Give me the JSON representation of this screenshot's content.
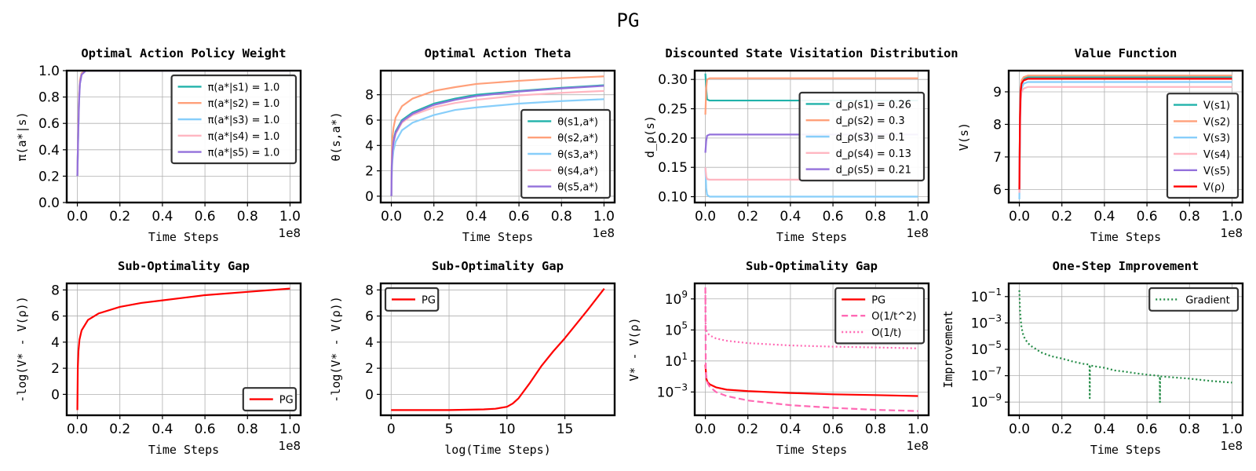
{
  "figure": {
    "title": "PG"
  },
  "chart_data": [
    {
      "type": "line",
      "title": "Optimal Action Policy Weight",
      "xlabel": "Time Steps",
      "ylabel": "π(a*|s)",
      "x_scale_note": "1e8",
      "xlim": [
        -0.05,
        1.05
      ],
      "ylim": [
        0.0,
        1.0
      ],
      "xticks": [
        0.0,
        0.2,
        0.4,
        0.6,
        0.8,
        1.0
      ],
      "xtick_labels": [
        "0.0",
        "0.2",
        "0.4",
        "0.6",
        "0.8",
        "1.0"
      ],
      "yticks": [
        0.0,
        0.2,
        0.4,
        0.6,
        0.8,
        1.0
      ],
      "ytick_labels": [
        "0.0",
        "0.2",
        "0.4",
        "0.6",
        "0.8",
        "1.0"
      ],
      "grid": true,
      "legend_position": "top-right",
      "series": [
        {
          "name": "π(a*|s1) = 1.0",
          "color": "#20b2aa",
          "x": [
            0,
            0.004,
            0.008,
            0.012,
            0.02,
            0.04,
            1.0
          ],
          "y": [
            0.2,
            0.55,
            0.8,
            0.92,
            0.98,
            1.0,
            1.0
          ]
        },
        {
          "name": "π(a*|s2) = 1.0",
          "color": "#ffa07a",
          "x": [
            0,
            0.004,
            0.008,
            0.012,
            0.02,
            0.04,
            1.0
          ],
          "y": [
            0.2,
            0.57,
            0.82,
            0.93,
            0.98,
            1.0,
            1.0
          ]
        },
        {
          "name": "π(a*|s3) = 1.0",
          "color": "#87cefa",
          "x": [
            0,
            0.004,
            0.008,
            0.012,
            0.02,
            0.04,
            1.0
          ],
          "y": [
            0.2,
            0.5,
            0.76,
            0.9,
            0.97,
            1.0,
            1.0
          ]
        },
        {
          "name": "π(a*|s4) = 1.0",
          "color": "#ffb6c1",
          "x": [
            0,
            0.004,
            0.008,
            0.012,
            0.02,
            0.04,
            1.0
          ],
          "y": [
            0.2,
            0.53,
            0.78,
            0.91,
            0.97,
            1.0,
            1.0
          ]
        },
        {
          "name": "π(a*|s5) = 1.0",
          "color": "#9370db",
          "x": [
            0,
            0.004,
            0.008,
            0.012,
            0.02,
            0.04,
            1.0
          ],
          "y": [
            0.2,
            0.52,
            0.77,
            0.9,
            0.97,
            1.0,
            1.0
          ]
        }
      ]
    },
    {
      "type": "line",
      "title": "Optimal Action Theta",
      "xlabel": "Time Steps",
      "ylabel": "θ(s,a*)",
      "x_scale_note": "1e8",
      "xlim": [
        -0.05,
        1.05
      ],
      "ylim": [
        -0.5,
        9.9
      ],
      "xticks": [
        0.0,
        0.2,
        0.4,
        0.6,
        0.8,
        1.0
      ],
      "xtick_labels": [
        "0.0",
        "0.2",
        "0.4",
        "0.6",
        "0.8",
        "1.0"
      ],
      "yticks": [
        0,
        2,
        4,
        6,
        8
      ],
      "ytick_labels": [
        "0",
        "2",
        "4",
        "6",
        "8"
      ],
      "grid": true,
      "legend_position": "lower-right",
      "series": [
        {
          "name": "θ(s1,a*)",
          "color": "#20b2aa",
          "x": [
            0,
            0.002,
            0.005,
            0.01,
            0.02,
            0.05,
            0.1,
            0.2,
            0.3,
            0.4,
            0.6,
            0.8,
            1.0
          ],
          "y": [
            0,
            2.5,
            3.6,
            4.4,
            5.1,
            6.0,
            6.6,
            7.3,
            7.7,
            8.0,
            8.3,
            8.55,
            8.75
          ]
        },
        {
          "name": "θ(s2,a*)",
          "color": "#ffa07a",
          "x": [
            0,
            0.002,
            0.005,
            0.01,
            0.02,
            0.05,
            0.1,
            0.2,
            0.3,
            0.4,
            0.6,
            0.8,
            1.0
          ],
          "y": [
            0,
            3.3,
            4.6,
            5.4,
            6.2,
            7.1,
            7.7,
            8.3,
            8.6,
            8.85,
            9.1,
            9.3,
            9.45
          ]
        },
        {
          "name": "θ(s3,a*)",
          "color": "#87cefa",
          "x": [
            0,
            0.002,
            0.005,
            0.01,
            0.02,
            0.05,
            0.1,
            0.2,
            0.3,
            0.4,
            0.6,
            0.8,
            1.0
          ],
          "y": [
            0,
            1.8,
            2.8,
            3.6,
            4.3,
            5.2,
            5.8,
            6.4,
            6.8,
            7.0,
            7.3,
            7.5,
            7.65
          ]
        },
        {
          "name": "θ(s4,a*)",
          "color": "#ffb6c1",
          "x": [
            0,
            0.002,
            0.005,
            0.01,
            0.02,
            0.05,
            0.1,
            0.2,
            0.3,
            0.4,
            0.6,
            0.8,
            1.0
          ],
          "y": [
            0,
            2.3,
            3.4,
            4.2,
            4.9,
            5.8,
            6.4,
            7.0,
            7.35,
            7.6,
            7.95,
            8.15,
            8.3
          ]
        },
        {
          "name": "θ(s5,a*)",
          "color": "#9370db",
          "x": [
            0,
            0.002,
            0.005,
            0.01,
            0.02,
            0.05,
            0.1,
            0.2,
            0.3,
            0.4,
            0.6,
            0.8,
            1.0
          ],
          "y": [
            0,
            2.4,
            3.5,
            4.3,
            5.0,
            5.9,
            6.5,
            7.2,
            7.6,
            7.9,
            8.25,
            8.5,
            8.7
          ]
        }
      ]
    },
    {
      "type": "line",
      "title": "Discounted State Visitation Distribution",
      "xlabel": "Time Steps",
      "ylabel": "d_ρ(s)",
      "x_scale_note": "1e8",
      "xlim": [
        -0.05,
        1.05
      ],
      "ylim": [
        0.09,
        0.315
      ],
      "xticks": [
        0.0,
        0.2,
        0.4,
        0.6,
        0.8,
        1.0
      ],
      "xtick_labels": [
        "0.0",
        "0.2",
        "0.4",
        "0.6",
        "0.8",
        "1.0"
      ],
      "yticks": [
        0.1,
        0.15,
        0.2,
        0.25,
        0.3
      ],
      "ytick_labels": [
        "0.10",
        "0.15",
        "0.20",
        "0.25",
        "0.30"
      ],
      "grid": true,
      "legend_position": "center-right",
      "series": [
        {
          "name": "d_ρ(s1) = 0.26",
          "color": "#20b2aa",
          "x": [
            0,
            0.004,
            0.008,
            0.02,
            1.0
          ],
          "y": [
            0.31,
            0.285,
            0.266,
            0.264,
            0.264
          ]
        },
        {
          "name": "d_ρ(s2) = 0.3",
          "color": "#ffa07a",
          "x": [
            0,
            0.004,
            0.008,
            0.02,
            1.0
          ],
          "y": [
            0.24,
            0.285,
            0.3,
            0.302,
            0.302
          ]
        },
        {
          "name": "d_ρ(s3) = 0.1",
          "color": "#87cefa",
          "x": [
            0,
            0.004,
            0.008,
            0.02,
            1.0
          ],
          "y": [
            0.15,
            0.115,
            0.103,
            0.1,
            0.1
          ]
        },
        {
          "name": "d_ρ(s4) = 0.13",
          "color": "#ffb6c1",
          "x": [
            0,
            0.004,
            0.008,
            0.02,
            1.0
          ],
          "y": [
            0.15,
            0.135,
            0.13,
            0.129,
            0.129
          ]
        },
        {
          "name": "d_ρ(s5) = 0.21",
          "color": "#9370db",
          "x": [
            0,
            0.004,
            0.008,
            0.02,
            1.0
          ],
          "y": [
            0.175,
            0.195,
            0.204,
            0.206,
            0.206
          ]
        }
      ]
    },
    {
      "type": "line",
      "title": "Value Function",
      "xlabel": "Time Steps",
      "ylabel": "V(s)",
      "x_scale_note": "1e8",
      "xlim": [
        -0.05,
        1.05
      ],
      "ylim": [
        5.6,
        9.65
      ],
      "xticks": [
        0.0,
        0.2,
        0.4,
        0.6,
        0.8,
        1.0
      ],
      "xtick_labels": [
        "0.0",
        "0.2",
        "0.4",
        "0.6",
        "0.8",
        "1.0"
      ],
      "yticks": [
        6,
        7,
        8,
        9
      ],
      "ytick_labels": [
        "6",
        "7",
        "8",
        "9"
      ],
      "grid": true,
      "legend_position": "lower-right",
      "series": [
        {
          "name": "V(s1)",
          "color": "#20b2aa",
          "x": [
            0,
            0.003,
            0.006,
            0.01,
            0.02,
            0.04,
            1.0
          ],
          "y": [
            6.0,
            8.2,
            9.0,
            9.3,
            9.4,
            9.45,
            9.45
          ]
        },
        {
          "name": "V(s2)",
          "color": "#ffa07a",
          "x": [
            0,
            0.003,
            0.006,
            0.01,
            0.02,
            0.04,
            1.0
          ],
          "y": [
            6.1,
            8.3,
            9.1,
            9.35,
            9.45,
            9.5,
            9.5
          ]
        },
        {
          "name": "V(s3)",
          "color": "#87cefa",
          "x": [
            0,
            0.003,
            0.006,
            0.01,
            0.02,
            0.04,
            1.0
          ],
          "y": [
            5.7,
            7.9,
            8.8,
            9.1,
            9.25,
            9.3,
            9.3
          ]
        },
        {
          "name": "V(s4)",
          "color": "#ffb6c1",
          "x": [
            0,
            0.003,
            0.006,
            0.01,
            0.02,
            0.04,
            1.0
          ],
          "y": [
            5.9,
            7.9,
            8.7,
            9.0,
            9.1,
            9.15,
            9.15
          ]
        },
        {
          "name": "V(s5)",
          "color": "#9370db",
          "x": [
            0,
            0.003,
            0.006,
            0.01,
            0.02,
            0.04,
            1.0
          ],
          "y": [
            6.0,
            8.1,
            8.95,
            9.25,
            9.35,
            9.4,
            9.4
          ]
        },
        {
          "name": "V(ρ)",
          "color": "#ff0000",
          "x": [
            0,
            0.003,
            0.006,
            0.01,
            0.02,
            0.04,
            1.0
          ],
          "y": [
            6.0,
            8.2,
            9.0,
            9.25,
            9.35,
            9.4,
            9.4
          ]
        }
      ]
    },
    {
      "type": "line",
      "title": "Sub-Optimality Gap",
      "xlabel": "Time Steps",
      "ylabel": "-log(V* - V(ρ))",
      "x_scale_note": "1e8",
      "xlim": [
        -0.05,
        1.05
      ],
      "ylim": [
        -1.6,
        8.5
      ],
      "xticks": [
        0.0,
        0.2,
        0.4,
        0.6,
        0.8,
        1.0
      ],
      "xtick_labels": [
        "0.0",
        "0.2",
        "0.4",
        "0.6",
        "0.8",
        "1.0"
      ],
      "yticks": [
        0,
        2,
        4,
        6,
        8
      ],
      "ytick_labels": [
        "0",
        "2",
        "4",
        "6",
        "8"
      ],
      "grid": true,
      "legend_position": "lower-right",
      "series": [
        {
          "name": "PG",
          "color": "#ff0000",
          "x": [
            0,
            0.002,
            0.005,
            0.01,
            0.02,
            0.05,
            0.1,
            0.2,
            0.3,
            0.4,
            0.5,
            0.6,
            0.8,
            1.0
          ],
          "y": [
            -1.2,
            2.0,
            3.3,
            4.2,
            4.9,
            5.7,
            6.2,
            6.7,
            7.0,
            7.2,
            7.4,
            7.6,
            7.85,
            8.1
          ]
        }
      ]
    },
    {
      "type": "line",
      "title": "Sub-Optimality Gap",
      "xlabel": "log(Time Steps)",
      "ylabel": "-log(V* - V(ρ))",
      "xlim": [
        -0.9,
        19.3
      ],
      "ylim": [
        -1.6,
        8.5
      ],
      "xticks": [
        0,
        5,
        10,
        15
      ],
      "xtick_labels": [
        "0",
        "5",
        "10",
        "15"
      ],
      "yticks": [
        0,
        2,
        4,
        6,
        8
      ],
      "ytick_labels": [
        "0",
        "2",
        "4",
        "6",
        "8"
      ],
      "grid": true,
      "legend_position": "top-left",
      "series": [
        {
          "name": "PG",
          "color": "#ff0000",
          "x": [
            0,
            5,
            8,
            9,
            10,
            10.5,
            11,
            12,
            13,
            14,
            15,
            16,
            17,
            18.4
          ],
          "y": [
            -1.2,
            -1.2,
            -1.15,
            -1.1,
            -0.95,
            -0.7,
            -0.3,
            0.9,
            2.2,
            3.3,
            4.3,
            5.4,
            6.5,
            8.1
          ]
        }
      ]
    },
    {
      "type": "line",
      "title": "Sub-Optimality Gap",
      "xlabel": "Time Steps",
      "ylabel": "V* - V(ρ)",
      "x_scale_note": "1e8",
      "y_scale": "log",
      "xlim": [
        -0.05,
        1.05
      ],
      "ylim": [
        1e-06,
        100000000000.0
      ],
      "xticks": [
        0.0,
        0.2,
        0.4,
        0.6,
        0.8,
        1.0
      ],
      "xtick_labels": [
        "0.0",
        "0.2",
        "0.4",
        "0.6",
        "0.8",
        "1.0"
      ],
      "yticks": [
        0.001,
        10,
        100000,
        1000000000
      ],
      "ytick_labels": [
        "10^−3",
        "10^1",
        "10^5",
        "10^9"
      ],
      "grid": true,
      "legend_position": "top-right",
      "series": [
        {
          "name": "PG",
          "color": "#ff0000",
          "dash": "solid",
          "x": [
            0,
            0.005,
            0.01,
            0.02,
            0.05,
            0.1,
            0.2,
            0.4,
            0.6,
            0.8,
            1.0
          ],
          "y": [
            3.3,
            0.05,
            0.02,
            0.01,
            0.004,
            0.002,
            0.0013,
            0.00075,
            0.0005,
            0.0004,
            0.0003
          ]
        },
        {
          "name": "O(1/t^2)",
          "color": "#ff69b4",
          "dash": "dashed",
          "x": [
            0,
            0.002,
            0.005,
            0.01,
            0.02,
            0.05,
            0.1,
            0.2,
            0.4,
            0.6,
            0.8,
            1.0
          ],
          "y": [
            30000000000.0,
            0.5,
            0.05,
            0.015,
            0.005,
            0.001,
            0.0003,
            8e-05,
            2e-05,
            9e-06,
            5e-06,
            3.5e-06
          ]
        },
        {
          "name": "O(1/t)",
          "color": "#ff69b4",
          "dash": "dotted",
          "x": [
            0,
            0.001,
            0.002,
            0.005,
            0.01,
            0.02,
            0.05,
            0.1,
            0.2,
            0.4,
            0.6,
            0.8,
            1.0
          ],
          "y": [
            10000000000.0,
            1000000.0,
            200000,
            80000,
            40000,
            20000,
            8000,
            4000,
            2000,
            1000,
            700,
            550,
            420
          ]
        }
      ]
    },
    {
      "type": "line",
      "title": "One-Step Improvement",
      "xlabel": "Time Steps",
      "ylabel": "Improvement",
      "x_scale_note": "1e8",
      "y_scale": "log",
      "xlim": [
        -0.05,
        1.05
      ],
      "ylim": [
        1e-10,
        1
      ],
      "xticks": [
        0.0,
        0.2,
        0.4,
        0.6,
        0.8,
        1.0
      ],
      "xtick_labels": [
        "0.0",
        "0.2",
        "0.4",
        "0.6",
        "0.8",
        "1.0"
      ],
      "yticks": [
        1e-09,
        1e-07,
        1e-05,
        0.001,
        0.1
      ],
      "ytick_labels": [
        "10^−9",
        "10^−7",
        "10^−5",
        "10^−3",
        "10^−1"
      ],
      "grid": true,
      "legend_position": "top-right",
      "series": [
        {
          "name": "Gradient",
          "color": "#228b45",
          "dash": "dotted",
          "x": [
            0,
            0.003,
            0.006,
            0.01,
            0.015,
            0.02,
            0.03,
            0.05,
            0.08,
            0.1,
            0.15,
            0.2,
            0.25,
            0.3,
            0.33,
            0.331,
            0.332,
            0.36,
            0.4,
            0.45,
            0.5,
            0.55,
            0.6,
            0.65,
            0.66,
            0.661,
            0.662,
            0.7,
            0.8,
            0.9,
            1.0
          ],
          "y": [
            0.3,
            0.01,
            0.002,
            0.0005,
            0.0002,
            0.0001,
            5e-05,
            2e-05,
            1e-05,
            6e-06,
            3e-06,
            2e-06,
            1.2e-06,
            8e-07,
            7e-07,
            2e-09,
            6e-07,
            5e-07,
            4e-07,
            2.5e-07,
            2e-07,
            1.5e-07,
            1.2e-07,
            1e-07,
            1e-07,
            1e-09,
            9e-08,
            8e-08,
            6e-08,
            4e-08,
            3e-08
          ]
        }
      ]
    }
  ]
}
